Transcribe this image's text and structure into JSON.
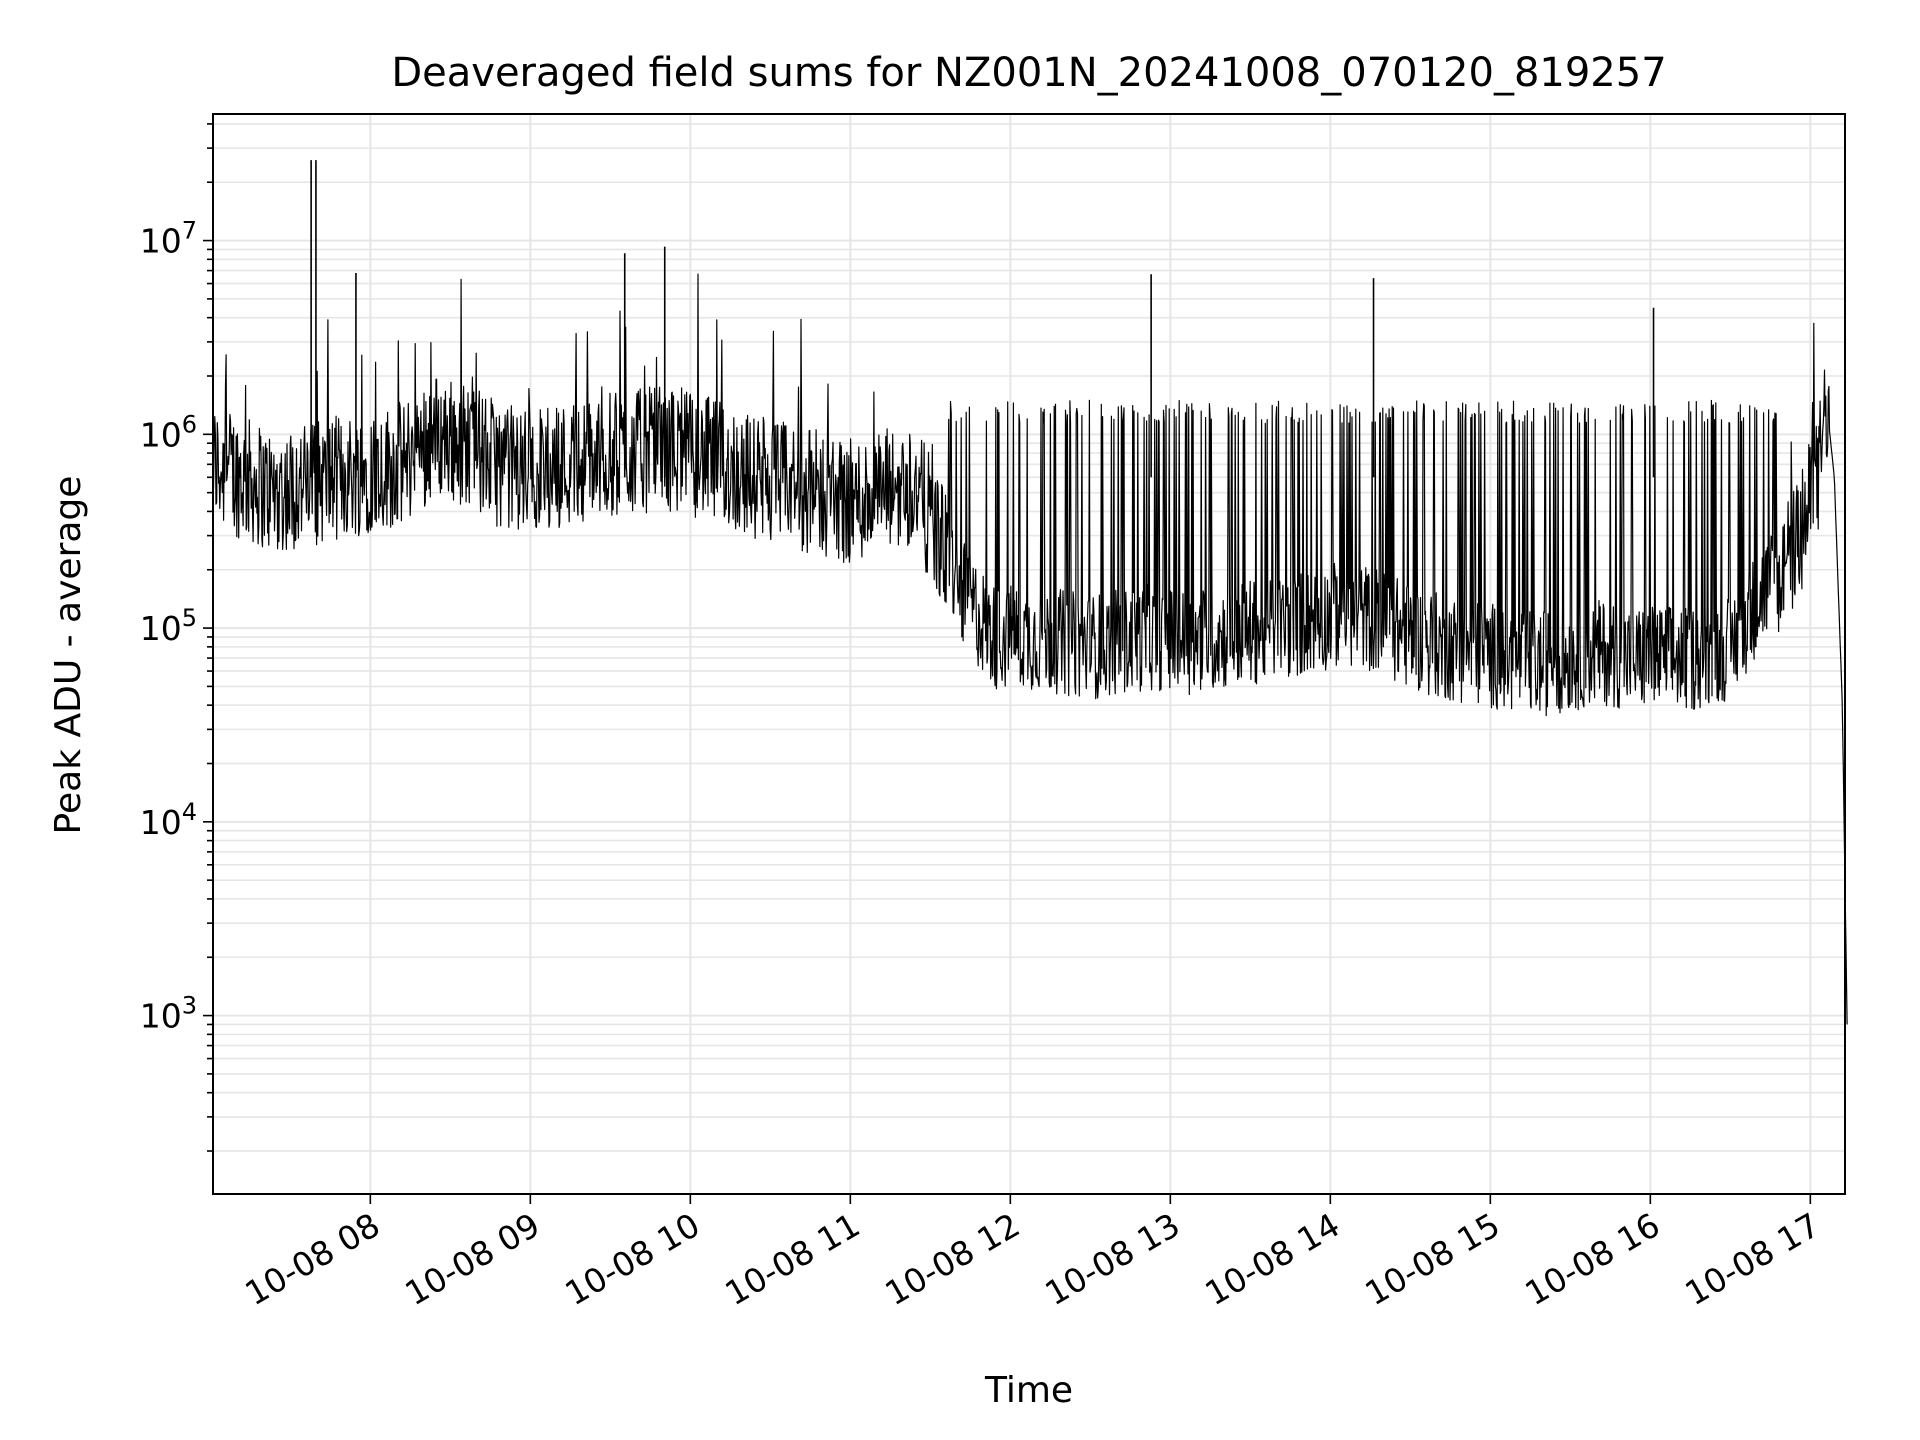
{
  "chart_data": {
    "type": "line",
    "title": "Deaveraged field sums for NZ001N_20241008_070120_819257",
    "xlabel": "Time",
    "ylabel": "Peak ADU - average",
    "yscale": "log",
    "xlim": [
      "10-08 07:01",
      "10-08 17:13"
    ],
    "ylim": [
      120,
      45000000
    ],
    "grid": true,
    "line_color": "#000000",
    "grid_color": "#e6e6e6",
    "x_ticks": [
      {
        "label": "10-08 08",
        "hour": 8
      },
      {
        "label": "10-08 09",
        "hour": 9
      },
      {
        "label": "10-08 10",
        "hour": 10
      },
      {
        "label": "10-08 11",
        "hour": 11
      },
      {
        "label": "10-08 12",
        "hour": 12
      },
      {
        "label": "10-08 13",
        "hour": 13
      },
      {
        "label": "10-08 14",
        "hour": 14
      },
      {
        "label": "10-08 15",
        "hour": 15
      },
      {
        "label": "10-08 16",
        "hour": 16
      },
      {
        "label": "10-08 17",
        "hour": 17
      }
    ],
    "y_ticks": [
      {
        "base": "10",
        "exp": "3",
        "value": 1000
      },
      {
        "base": "10",
        "exp": "4",
        "value": 10000
      },
      {
        "base": "10",
        "exp": "5",
        "value": 100000
      },
      {
        "base": "10",
        "exp": "6",
        "value": 1000000
      },
      {
        "base": "10",
        "exp": "7",
        "value": 10000000
      }
    ],
    "series": [
      {
        "x_hours": [
          7.02,
          7.2,
          7.4,
          7.6,
          7.8,
          8.0,
          8.2,
          8.4,
          8.6,
          8.8,
          9.0,
          9.2,
          9.4,
          9.6,
          9.8,
          10.0,
          10.2,
          10.4,
          10.6,
          10.8,
          11.0,
          11.2,
          11.4,
          11.55,
          11.7,
          11.9,
          12.1,
          12.3,
          12.5,
          12.7,
          12.9,
          13.1,
          13.3,
          13.5,
          13.7,
          13.9,
          14.1,
          14.3,
          14.5,
          14.7,
          14.9,
          15.1,
          15.3,
          15.5,
          15.7,
          15.9,
          16.1,
          16.3,
          16.5,
          16.7,
          16.9,
          17.05,
          17.1,
          17.15,
          17.2,
          17.23
        ],
        "values": [
          700000,
          600000,
          500000,
          550000,
          600000,
          650000,
          700000,
          1000000,
          900000,
          700000,
          650000,
          700000,
          750000,
          800000,
          850000,
          800000,
          700000,
          600000,
          550000,
          500000,
          450000,
          500000,
          550000,
          300000,
          150000,
          90000,
          90000,
          85000,
          80000,
          85000,
          90000,
          85000,
          90000,
          95000,
          100000,
          110000,
          120000,
          110000,
          90000,
          80000,
          75000,
          70000,
          65000,
          70000,
          75000,
          70000,
          70000,
          70000,
          80000,
          150000,
          250000,
          600000,
          1500000,
          600000,
          40000,
          900
        ]
      }
    ],
    "spikes": [
      {
        "hour": 7.63,
        "value": 26000000
      },
      {
        "hour": 7.66,
        "value": 26000000
      },
      {
        "hour": 7.91,
        "value": 6800000
      },
      {
        "hour": 9.59,
        "value": 8600000
      },
      {
        "hour": 9.84,
        "value": 9300000
      },
      {
        "hour": 12.88,
        "value": 6700000
      },
      {
        "hour": 14.27,
        "value": 6400000
      },
      {
        "hour": 16.02,
        "value": 4500000
      }
    ]
  }
}
